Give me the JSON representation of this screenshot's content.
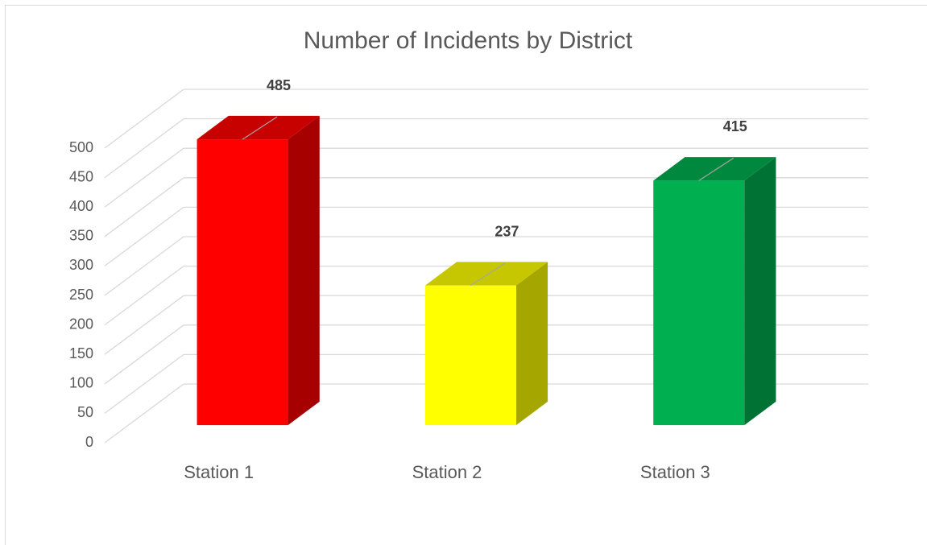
{
  "chart_data": {
    "type": "bar3d",
    "title": "Number of Incidents by District",
    "categories": [
      "Station 1",
      "Station 2",
      "Station 3"
    ],
    "values": [
      485,
      237,
      415
    ],
    "colors": [
      "#ff0000",
      "#ffff00",
      "#00b050"
    ],
    "ylim": [
      0,
      500
    ],
    "yticks": [
      0,
      50,
      100,
      150,
      200,
      250,
      300,
      350,
      400,
      450,
      500
    ],
    "grid": true
  }
}
